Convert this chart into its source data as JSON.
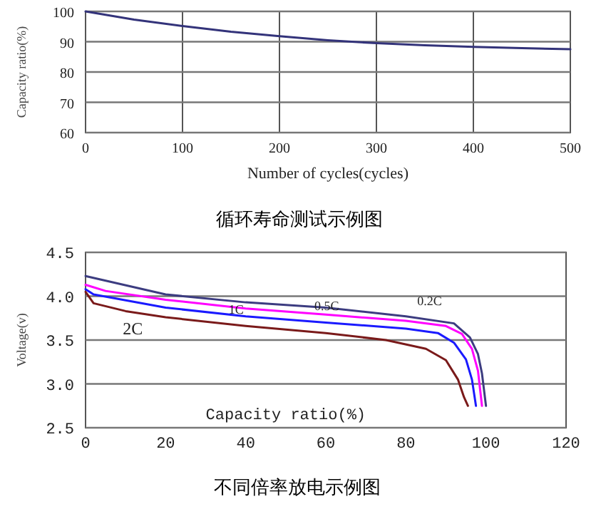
{
  "chart_data": [
    {
      "type": "line",
      "title": "循环寿命测试示例图",
      "xlabel": "Number of cycles(cycles)",
      "ylabel": "Capacity ratio(%)",
      "x": [
        0,
        50,
        100,
        150,
        200,
        250,
        300,
        350,
        400,
        450,
        500
      ],
      "series": [
        {
          "color": "#33337a",
          "values": [
            100,
            97.3,
            95.2,
            93.3,
            91.8,
            90.5,
            89.5,
            88.8,
            88.3,
            87.9,
            87.5
          ]
        }
      ],
      "xlim": [
        0,
        500
      ],
      "ylim": [
        60,
        100
      ],
      "xticks": [
        0,
        100,
        200,
        300,
        400,
        500
      ],
      "yticks": [
        60,
        70,
        80,
        90,
        100
      ],
      "grid": true
    },
    {
      "type": "line",
      "title": "不同倍率放电示例图",
      "xlabel": "Capacity ratio(%)",
      "ylabel": "Voltage(v)",
      "series": [
        {
          "name": "0.2C",
          "color": "#3c3c80",
          "x": [
            0,
            20,
            40,
            60,
            80,
            92,
            96,
            98,
            99,
            100
          ],
          "values": [
            4.23,
            4.02,
            3.93,
            3.87,
            3.77,
            3.69,
            3.53,
            3.34,
            3.12,
            2.75
          ]
        },
        {
          "name": "0.5C",
          "color": "#ff00ff",
          "x": [
            0,
            5,
            20,
            40,
            60,
            80,
            90,
            94,
            96.5,
            98,
            99
          ],
          "values": [
            4.13,
            4.06,
            3.96,
            3.86,
            3.79,
            3.72,
            3.66,
            3.57,
            3.4,
            3.15,
            2.75
          ]
        },
        {
          "name": "1C",
          "color": "#1a1aff",
          "x": [
            0,
            2,
            20,
            40,
            60,
            80,
            88,
            92,
            95,
            96.5,
            97.5
          ],
          "values": [
            4.08,
            4.02,
            3.87,
            3.77,
            3.7,
            3.63,
            3.58,
            3.47,
            3.28,
            3.05,
            2.75
          ]
        },
        {
          "name": "2C",
          "color": "#7a1a1a",
          "x": [
            0,
            2,
            10,
            20,
            40,
            60,
            75,
            85,
            90,
            93,
            94.5,
            95.5
          ],
          "values": [
            4.05,
            3.92,
            3.83,
            3.76,
            3.66,
            3.58,
            3.5,
            3.4,
            3.27,
            3.05,
            2.85,
            2.75
          ]
        }
      ],
      "xlim": [
        0,
        120
      ],
      "ylim": [
        2.5,
        4.5
      ],
      "xticks": [
        0,
        20,
        40,
        60,
        80,
        100,
        120
      ],
      "yticks": [
        2.5,
        {
          "value": 3,
          "label": "3.0"
        },
        3.5,
        {
          "value": 4,
          "label": "4.0"
        },
        4.5
      ],
      "grid": "y"
    }
  ]
}
